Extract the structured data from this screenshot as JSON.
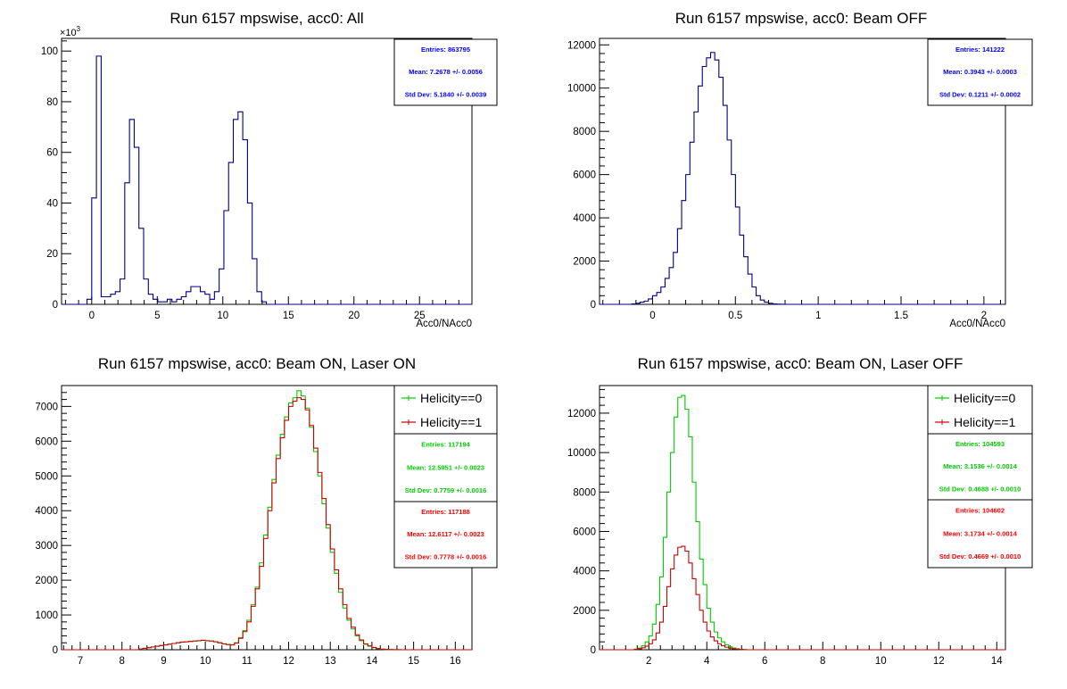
{
  "chart_data": [
    {
      "type": "histogram",
      "title": "Run 6157 mpswise, acc0: All",
      "xlabel": "Acc0/NAcc0",
      "ylabel": "",
      "y_exponent_label": "×10",
      "y_exponent_power": "3",
      "xlim": [
        -2.3,
        29.0
      ],
      "ylim": [
        0,
        105
      ],
      "xticks": [
        0,
        5,
        10,
        15,
        20,
        25
      ],
      "yticks": [
        0,
        20,
        40,
        60,
        80,
        100
      ],
      "bin_width": 0.36,
      "series": [
        {
          "color": "#000080",
          "x": [
            -0.18,
            0.18,
            0.54,
            0.9,
            1.26,
            1.62,
            1.98,
            2.34,
            2.7,
            3.06,
            3.42,
            3.78,
            4.14,
            4.5,
            4.86,
            5.22,
            5.58,
            5.94,
            6.3,
            6.66,
            7.02,
            7.38,
            7.74,
            8.1,
            8.46,
            8.82,
            9.18,
            9.54,
            9.9,
            10.26,
            10.62,
            10.98,
            11.34,
            11.7,
            12.06,
            12.42,
            12.78,
            13.14,
            13.5,
            13.86,
            14.22,
            14.58
          ],
          "values": [
            2,
            42,
            98,
            3,
            3,
            4,
            5,
            10,
            48,
            73,
            62,
            30,
            10,
            4,
            2,
            1,
            1,
            2,
            1,
            2,
            3,
            5,
            7,
            7,
            5,
            4,
            2,
            5,
            14,
            37,
            56,
            73,
            76,
            65,
            40,
            18,
            5,
            1,
            0,
            0,
            0,
            0
          ]
        }
      ],
      "stats": [
        {
          "color": "#0000ff",
          "entries": "Entries: 863795",
          "mean": "Mean: 7.2678 +/- 0.0056",
          "std": "Std Dev: 5.1840 +/- 0.0039"
        }
      ],
      "legend": []
    },
    {
      "type": "histogram",
      "title": "Run 6157 mpswise, acc0: Beam OFF",
      "xlabel": "Acc0/NAcc0",
      "ylabel": "",
      "xlim": [
        -0.32,
        2.13
      ],
      "ylim": [
        0,
        12300
      ],
      "xticks": [
        0,
        0.5,
        1,
        1.5,
        2
      ],
      "xtick_labels": [
        "0",
        "0.5",
        "1",
        "1.5",
        "2"
      ],
      "yticks": [
        0,
        2000,
        4000,
        6000,
        8000,
        10000,
        12000
      ],
      "bin_width": 0.025,
      "series": [
        {
          "color": "#000080",
          "x": [
            -0.113,
            -0.088,
            -0.063,
            -0.038,
            -0.013,
            0.013,
            0.038,
            0.063,
            0.088,
            0.113,
            0.138,
            0.163,
            0.188,
            0.213,
            0.238,
            0.263,
            0.288,
            0.313,
            0.338,
            0.363,
            0.388,
            0.413,
            0.438,
            0.463,
            0.488,
            0.513,
            0.538,
            0.563,
            0.588,
            0.613,
            0.638,
            0.663,
            0.688,
            0.713,
            0.738,
            0.763,
            0.788
          ],
          "values": [
            20,
            50,
            100,
            150,
            250,
            400,
            550,
            800,
            1200,
            1700,
            2400,
            3500,
            4800,
            6000,
            7500,
            8900,
            10100,
            11000,
            11400,
            11650,
            11300,
            10500,
            9200,
            7600,
            6000,
            4500,
            3200,
            2200,
            1400,
            800,
            400,
            200,
            100,
            50,
            20,
            10,
            5
          ]
        }
      ],
      "stats": [
        {
          "color": "#0000ff",
          "entries": "Entries: 141222",
          "mean": "Mean: 0.3943 +/- 0.0003",
          "std": "Std Dev: 0.1211 +/- 0.0002"
        }
      ],
      "legend": []
    },
    {
      "type": "histogram",
      "title": "Run 6157 mpswise, acc0: Beam ON, Laser ON",
      "xlabel": "",
      "ylabel": "",
      "xlim": [
        6.55,
        16.4
      ],
      "ylim": [
        0,
        7600
      ],
      "xticks": [
        7,
        8,
        9,
        10,
        11,
        12,
        13,
        14,
        15,
        16
      ],
      "yticks": [
        0,
        1000,
        2000,
        3000,
        4000,
        5000,
        6000,
        7000
      ],
      "bin_width": 0.1,
      "series": [
        {
          "name": "Helicity==0",
          "color": "#00cc00",
          "x": [
            8.45,
            8.55,
            8.65,
            8.75,
            8.85,
            8.95,
            9.05,
            9.15,
            9.25,
            9.35,
            9.45,
            9.55,
            9.65,
            9.75,
            9.85,
            9.95,
            10.05,
            10.15,
            10.25,
            10.35,
            10.45,
            10.55,
            10.65,
            10.75,
            10.85,
            10.95,
            11.05,
            11.15,
            11.25,
            11.35,
            11.45,
            11.55,
            11.65,
            11.75,
            11.85,
            11.95,
            12.05,
            12.15,
            12.25,
            12.35,
            12.45,
            12.55,
            12.65,
            12.75,
            12.85,
            12.95,
            13.05,
            13.15,
            13.25,
            13.35,
            13.45,
            13.55,
            13.65,
            13.75,
            13.85,
            13.95,
            14.05,
            14.15,
            14.25,
            14.35,
            14.45,
            14.55,
            14.65,
            14.75,
            14.85
          ],
          "values": [
            20,
            40,
            60,
            80,
            100,
            120,
            140,
            160,
            180,
            200,
            220,
            230,
            240,
            250,
            260,
            270,
            260,
            250,
            230,
            200,
            170,
            150,
            140,
            200,
            350,
            550,
            850,
            1300,
            1800,
            2500,
            3300,
            4100,
            4900,
            5600,
            6200,
            6700,
            7100,
            7250,
            7450,
            7300,
            6950,
            6400,
            5700,
            5000,
            4200,
            3500,
            2800,
            2200,
            1650,
            1200,
            850,
            600,
            400,
            260,
            160,
            100,
            60,
            30,
            15,
            8,
            4,
            2,
            1,
            0,
            0
          ]
        },
        {
          "name": "Helicity==1",
          "color": "#cc0000",
          "x": [
            8.45,
            8.55,
            8.65,
            8.75,
            8.85,
            8.95,
            9.05,
            9.15,
            9.25,
            9.35,
            9.45,
            9.55,
            9.65,
            9.75,
            9.85,
            9.95,
            10.05,
            10.15,
            10.25,
            10.35,
            10.45,
            10.55,
            10.65,
            10.75,
            10.85,
            10.95,
            11.05,
            11.15,
            11.25,
            11.35,
            11.45,
            11.55,
            11.65,
            11.75,
            11.85,
            11.95,
            12.05,
            12.15,
            12.25,
            12.35,
            12.45,
            12.55,
            12.65,
            12.75,
            12.85,
            12.95,
            13.05,
            13.15,
            13.25,
            13.35,
            13.45,
            13.55,
            13.65,
            13.75,
            13.85,
            13.95,
            14.05,
            14.15,
            14.25,
            14.35,
            14.45,
            14.55,
            14.65,
            14.75,
            14.85
          ],
          "values": [
            20,
            40,
            60,
            80,
            100,
            120,
            140,
            160,
            180,
            200,
            220,
            230,
            240,
            250,
            260,
            270,
            260,
            250,
            230,
            200,
            170,
            150,
            140,
            190,
            330,
            520,
            800,
            1250,
            1750,
            2400,
            3200,
            4000,
            4800,
            5500,
            6100,
            6600,
            7000,
            7150,
            7250,
            7200,
            6900,
            6450,
            5800,
            5100,
            4350,
            3600,
            2900,
            2300,
            1750,
            1300,
            900,
            650,
            430,
            280,
            170,
            110,
            65,
            35,
            18,
            9,
            5,
            2,
            1,
            0,
            0
          ]
        }
      ],
      "stats": [
        {
          "color": "#00cc00",
          "entries": "Entries: 117194",
          "mean": "Mean: 12.5951 +/- 0.0023",
          "std": "Std Dev: 0.7759 +/- 0.0016"
        },
        {
          "color": "#ff0000",
          "entries": "Entries: 117188",
          "mean": "Mean: 12.6117 +/- 0.0023",
          "std": "Std Dev: 0.7778 +/- 0.0016"
        }
      ],
      "legend": [
        "Helicity==0",
        "Helicity==1"
      ]
    },
    {
      "type": "histogram",
      "title": "Run 6157 mpswise, acc0: Beam ON, Laser OFF",
      "xlabel": "",
      "ylabel": "",
      "xlim": [
        0.3,
        14.3
      ],
      "ylim": [
        0,
        13400
      ],
      "xticks": [
        2,
        4,
        6,
        8,
        10,
        12,
        14
      ],
      "yticks": [
        0,
        2000,
        4000,
        6000,
        8000,
        10000,
        12000
      ],
      "bin_width": 0.125,
      "series": [
        {
          "name": "Helicity==0",
          "color": "#00cc00",
          "x": [
            1.5625,
            1.6875,
            1.8125,
            1.9375,
            2.0625,
            2.1875,
            2.3125,
            2.4375,
            2.5625,
            2.6875,
            2.8125,
            2.9375,
            3.0625,
            3.1875,
            3.3125,
            3.4375,
            3.5625,
            3.6875,
            3.8125,
            3.9375,
            4.0625,
            4.1875,
            4.3125,
            4.4375,
            4.5625,
            4.6875,
            4.8125,
            4.9375,
            5.0625,
            5.1875,
            5.3125
          ],
          "values": [
            30,
            80,
            200,
            400,
            700,
            1300,
            2300,
            3700,
            5700,
            8000,
            10000,
            11800,
            12800,
            12900,
            12200,
            10800,
            8500,
            6500,
            4600,
            3300,
            2100,
            1400,
            900,
            600,
            400,
            250,
            150,
            90,
            50,
            20,
            10
          ]
        },
        {
          "name": "Helicity==1",
          "color": "#cc0000",
          "x": [
            1.5625,
            1.6875,
            1.8125,
            1.9375,
            2.0625,
            2.1875,
            2.3125,
            2.4375,
            2.5625,
            2.6875,
            2.8125,
            2.9375,
            3.0625,
            3.1875,
            3.3125,
            3.4375,
            3.5625,
            3.6875,
            3.8125,
            3.9375,
            4.0625,
            4.1875,
            4.3125,
            4.4375,
            4.5625,
            4.6875,
            4.8125,
            4.9375,
            5.0625,
            5.1875,
            5.3125
          ],
          "values": [
            20,
            50,
            100,
            180,
            300,
            500,
            850,
            1400,
            2200,
            3200,
            4100,
            4800,
            5200,
            5250,
            5000,
            4400,
            3600,
            2800,
            2000,
            1400,
            950,
            650,
            450,
            300,
            200,
            130,
            80,
            50,
            30,
            15,
            5
          ]
        }
      ],
      "stats": [
        {
          "color": "#00cc00",
          "entries": "Entries: 104593",
          "mean": "Mean: 3.1536 +/- 0.0014",
          "std": "Std Dev: 0.4688 +/- 0.0010"
        },
        {
          "color": "#ff0000",
          "entries": "Entries: 104602",
          "mean": "Mean: 3.1734 +/- 0.0014",
          "std": "Std Dev: 0.4669 +/- 0.0010"
        }
      ],
      "legend": [
        "Helicity==0",
        "Helicity==1"
      ]
    }
  ]
}
